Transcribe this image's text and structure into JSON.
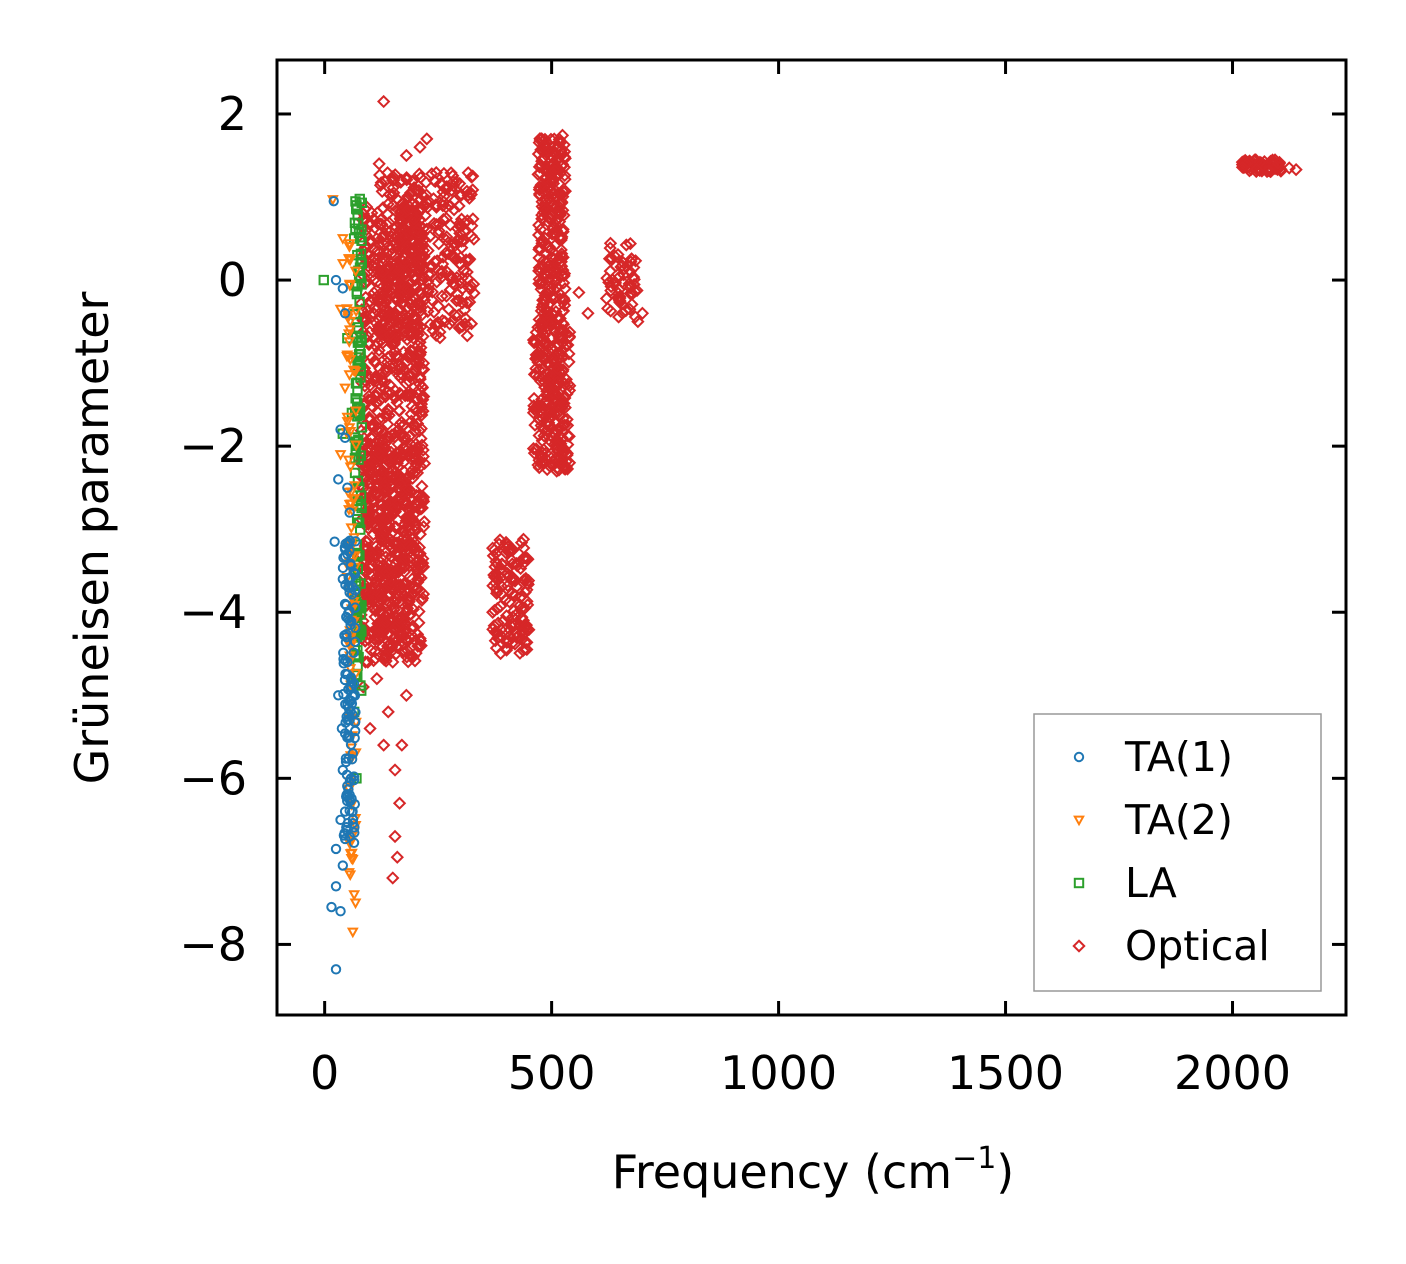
{
  "chart_data": {
    "type": "scatter",
    "title": "",
    "xlabel": "Frequency (cm",
    "xlabel_sup": "−1",
    "xlabel_suffix": ")",
    "ylabel": "Grüneisen parameter",
    "xlim": [
      -105,
      2250
    ],
    "ylim": [
      -8.85,
      2.65
    ],
    "xticks": [
      0,
      500,
      1000,
      1500,
      2000
    ],
    "xtick_labels": [
      "0",
      "500",
      "1000",
      "1500",
      "2000"
    ],
    "yticks": [
      2,
      0,
      -2,
      -4,
      -6,
      -8
    ],
    "ytick_labels": [
      "2",
      "0",
      "−2",
      "−4",
      "−6",
      "−8"
    ],
    "grid": false,
    "legend_position": "lower-right",
    "series": [
      {
        "name": "TA(1)",
        "marker": "circle",
        "color": "#1f77b4",
        "points": [
          [
            20,
            0.95
          ],
          [
            25,
            0.0
          ],
          [
            40,
            -0.1
          ],
          [
            45,
            -0.4
          ],
          [
            35,
            -1.8
          ],
          [
            45,
            -1.9
          ],
          [
            30,
            -2.4
          ],
          [
            50,
            -2.5
          ],
          [
            55,
            -2.8
          ],
          [
            22,
            -3.15
          ],
          [
            50,
            -3.3
          ],
          [
            40,
            -3.6
          ],
          [
            45,
            -3.9
          ],
          [
            55,
            -4.1
          ],
          [
            50,
            -4.6
          ],
          [
            60,
            -4.9
          ],
          [
            30,
            -5.0
          ],
          [
            55,
            -5.3
          ],
          [
            38,
            -5.4
          ],
          [
            62,
            -5.7
          ],
          [
            40,
            -5.9
          ],
          [
            55,
            -6.2
          ],
          [
            45,
            -6.4
          ],
          [
            35,
            -6.5
          ],
          [
            55,
            -6.7
          ],
          [
            25,
            -6.85
          ],
          [
            40,
            -7.05
          ],
          [
            25,
            -7.3
          ],
          [
            15,
            -7.55
          ],
          [
            35,
            -7.6
          ],
          [
            25,
            -8.3
          ],
          [
            60,
            -5.1
          ],
          [
            48,
            -4.3
          ],
          [
            52,
            -3.7
          ],
          [
            58,
            -6.0
          ]
        ],
        "band": {
          "x_range": [
            40,
            68
          ],
          "y_range": [
            -6.8,
            -3.0
          ],
          "count": 110
        }
      },
      {
        "name": "TA(2)",
        "marker": "triangle-down",
        "color": "#ff7f0e",
        "points": [
          [
            18,
            0.97
          ],
          [
            40,
            0.2
          ],
          [
            35,
            -0.35
          ],
          [
            50,
            -0.9
          ],
          [
            45,
            -1.3
          ],
          [
            50,
            -1.65
          ],
          [
            35,
            -2.1
          ],
          [
            55,
            -2.7
          ],
          [
            60,
            -3.2
          ],
          [
            55,
            -3.4
          ],
          [
            60,
            -6.9
          ],
          [
            65,
            -7.4
          ],
          [
            68,
            -7.5
          ],
          [
            62,
            -7.85
          ],
          [
            40,
            0.5
          ]
        ],
        "band": {
          "x_range": [
            48,
            70
          ],
          "y_range": [
            -7.2,
            0.5
          ],
          "count": 90
        }
      },
      {
        "name": "LA",
        "marker": "square",
        "color": "#2ca02c",
        "points": [
          [
            -2,
            0.0
          ],
          [
            65,
            0.5
          ],
          [
            50,
            -0.7
          ],
          [
            40,
            -1.85
          ],
          [
            65,
            -5.2
          ],
          [
            70,
            -6.0
          ],
          [
            60,
            -1.6
          ],
          [
            70,
            0.9
          ],
          [
            72,
            0.3
          ]
        ],
        "band": {
          "x_range": [
            66,
            82
          ],
          "y_range": [
            -5.0,
            1.0
          ],
          "count": 120
        }
      },
      {
        "name": "Optical",
        "marker": "diamond",
        "color": "#d62728",
        "points": [
          [
            130,
            2.15
          ],
          [
            225,
            1.7
          ],
          [
            210,
            1.6
          ],
          [
            180,
            1.5
          ],
          [
            120,
            1.4
          ],
          [
            150,
            1.2
          ],
          [
            270,
            1.1
          ],
          [
            115,
            -4.8
          ],
          [
            140,
            -5.2
          ],
          [
            170,
            -5.6
          ],
          [
            155,
            -5.9
          ],
          [
            165,
            -6.3
          ],
          [
            155,
            -6.7
          ],
          [
            160,
            -6.95
          ],
          [
            150,
            -7.2
          ],
          [
            180,
            -5.0
          ],
          [
            95,
            -4.6
          ],
          [
            85,
            -4.9
          ],
          [
            100,
            -5.4
          ],
          [
            130,
            -5.6
          ],
          [
            700,
            -0.4
          ],
          [
            690,
            -0.5
          ],
          [
            650,
            -0.2
          ],
          [
            580,
            -0.4
          ],
          [
            560,
            -0.15
          ],
          [
            470,
            -0.9
          ],
          [
            2140,
            1.33
          ],
          [
            2125,
            1.35
          ]
        ],
        "clusters": [
          {
            "x_range": [
              80,
              220
            ],
            "y_range": [
              -4.6,
              0.9
            ],
            "count": 900
          },
          {
            "x_range": [
              120,
              330
            ],
            "y_range": [
              -0.7,
              1.3
            ],
            "count": 350
          },
          {
            "x_range": [
              80,
              200
            ],
            "y_range": [
              -4.3,
              -2.0
            ],
            "count": 200
          },
          {
            "x_range": [
              470,
              530
            ],
            "y_range": [
              -0.5,
              1.75
            ],
            "count": 260
          },
          {
            "x_range": [
              460,
              540
            ],
            "y_range": [
              -2.3,
              -0.5
            ],
            "count": 260
          },
          {
            "x_range": [
              620,
              690
            ],
            "y_range": [
              -0.45,
              0.45
            ],
            "count": 60
          },
          {
            "x_range": [
              370,
              450
            ],
            "y_range": [
              -4.5,
              -3.1
            ],
            "count": 140
          },
          {
            "x_range": [
              2020,
              2110
            ],
            "y_range": [
              1.3,
              1.45
            ],
            "count": 60
          }
        ]
      }
    ]
  }
}
